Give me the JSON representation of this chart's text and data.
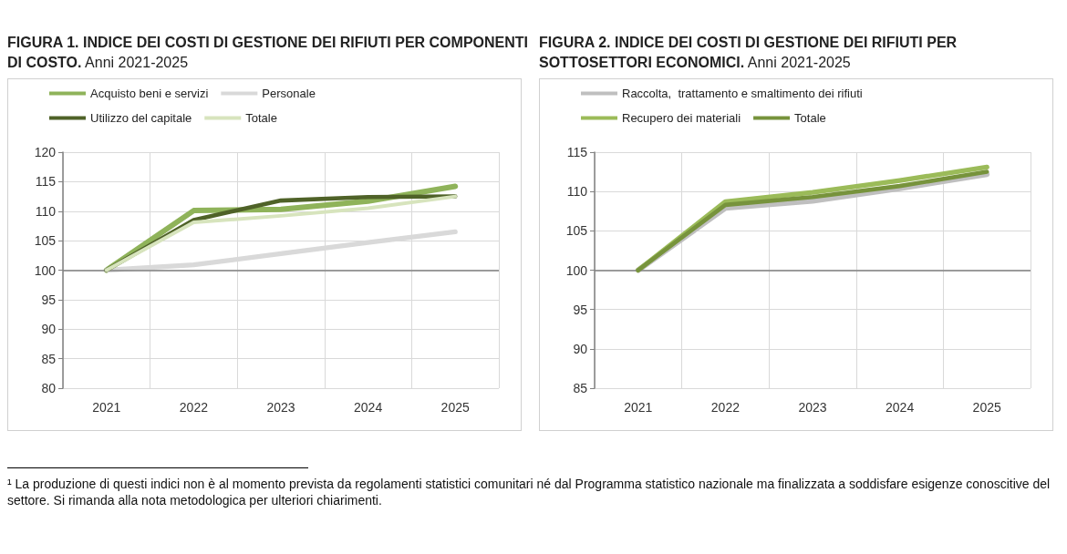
{
  "chart_data": [
    {
      "type": "line",
      "title": "FIGURA 1. INDICE DEI COSTI DI GESTIONE DEI RIFIUTI PER COMPONENTI DI COSTO.",
      "subtitle": "Anni 2021-2025",
      "categories": [
        "2021",
        "2022",
        "2023",
        "2024",
        "2025"
      ],
      "series": [
        {
          "name": "Acquisto beni e servizi",
          "color": "#8fb35a",
          "values": [
            100,
            110.1,
            110.3,
            111.7,
            114.2
          ]
        },
        {
          "name": "Personale",
          "color": "#d9d9d9",
          "values": [
            100,
            100.9,
            102.8,
            104.7,
            106.5
          ]
        },
        {
          "name": "Utilizzo del capitale",
          "color": "#4f6228",
          "values": [
            100,
            108.5,
            111.8,
            112.4,
            112.5
          ]
        },
        {
          "name": "Totale",
          "color": "#d7e4bd",
          "values": [
            100,
            108.1,
            109.2,
            110.5,
            112.5
          ]
        }
      ],
      "ylim": [
        80,
        120
      ],
      "yticks": [
        80,
        85,
        90,
        95,
        100,
        105,
        110,
        115,
        120
      ],
      "grid": true,
      "legend": "top",
      "marker": "none",
      "line_style": "solid",
      "ref_lines": [
        {
          "axis": "y",
          "value": 100,
          "color": "#808080"
        }
      ],
      "annotations": [
        "¹ La produzione di questi indici non è al momento prevista da regolamenti statistici comunitari né dal Programma statistico nazionale ma finalizzata a soddisfare esigenze conoscitive del settore. Si rimanda alla nota metodologica per ulteriori chiarimenti."
      ]
    },
    {
      "type": "line",
      "title": "FIGURA 2. INDICE DEI COSTI DI GESTIONE DEI RIFIUTI PER SOTTOSETTORI ECONOMICI.",
      "subtitle": "Anni 2021-2025",
      "categories": [
        "2021",
        "2022",
        "2023",
        "2024",
        "2025"
      ],
      "series": [
        {
          "name": "Raccolta,  trattamento e smaltimento dei rifiuti",
          "color": "#bfbfbf",
          "values": [
            100,
            107.9,
            108.8,
            110.4,
            112.2
          ]
        },
        {
          "name": "Recupero dei materiali",
          "color": "#9bbb59",
          "values": [
            100,
            108.7,
            109.9,
            111.4,
            113.1
          ]
        },
        {
          "name": "Totale",
          "color": "#77933c",
          "values": [
            100,
            108.3,
            109.3,
            110.7,
            112.5
          ]
        }
      ],
      "ylim": [
        85,
        115
      ],
      "yticks": [
        85,
        90,
        95,
        100,
        105,
        110,
        115
      ],
      "grid": true,
      "legend": "top",
      "marker": "none",
      "line_style": "solid",
      "ref_lines": [
        {
          "axis": "y",
          "value": 100,
          "color": "#808080"
        }
      ]
    }
  ]
}
